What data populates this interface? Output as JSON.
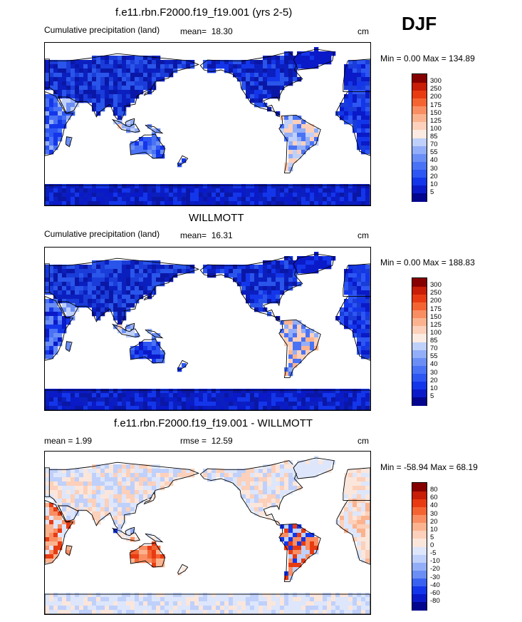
{
  "season": "DJF",
  "panels": [
    {
      "title": "f.e11.rbn.F2000.f19_f19.001 (yrs 2-5)",
      "left_label": "Cumulative precipitation (land)",
      "stat_label": "mean=",
      "stat_value": "18.30",
      "units": "cm",
      "minmax": "Min =   0.00 Max = 134.89",
      "mode": "abs"
    },
    {
      "title": "WILLMOTT",
      "left_label": "Cumulative precipitation (land)",
      "stat_label": "mean=",
      "stat_value": "16.31",
      "units": "cm",
      "minmax": "Min =   0.00 Max = 188.83",
      "mode": "abs2"
    },
    {
      "title": "f.e11.rbn.F2000.f19_f19.001 - WILLMOTT",
      "left_label": "mean =   1.99",
      "stat_label": "rmse =",
      "stat_value": "12.59",
      "units": "cm",
      "minmax": "Min = -58.94 Max =  68.19",
      "mode": "diff"
    }
  ],
  "chart_data": [
    {
      "type": "heatmap",
      "title": "f.e11.rbn.F2000.f19_f19.001 (yrs 2-5)",
      "variable": "Cumulative precipitation (land)",
      "units": "cm",
      "mean": 18.3,
      "min": 0.0,
      "max": 134.89,
      "colorbar_levels": [
        "5",
        "10",
        "20",
        "30",
        "40",
        "55",
        "70",
        "85",
        "100",
        "125",
        "150",
        "175",
        "200",
        "250",
        "300"
      ],
      "colorbar_colors": [
        "#03058e",
        "#0a1ac8",
        "#1436ea",
        "#2d56f2",
        "#4a72f5",
        "#6b8ef5",
        "#93aef8",
        "#bfd0fa",
        "#fbebe2",
        "#fcd0ba",
        "#fbb38f",
        "#f98e63",
        "#f46433",
        "#e83b12",
        "#c81d07",
        "#860000"
      ]
    },
    {
      "type": "heatmap",
      "title": "WILLMOTT",
      "variable": "Cumulative precipitation (land)",
      "units": "cm",
      "mean": 16.31,
      "min": 0.0,
      "max": 188.83,
      "colorbar_levels": [
        "5",
        "10",
        "20",
        "30",
        "40",
        "55",
        "70",
        "85",
        "100",
        "125",
        "150",
        "175",
        "200",
        "250",
        "300"
      ],
      "colorbar_colors": [
        "#03058e",
        "#0a1ac8",
        "#1436ea",
        "#2d56f2",
        "#4a72f5",
        "#6b8ef5",
        "#93aef8",
        "#bfd0fa",
        "#fbebe2",
        "#fcd0ba",
        "#fbb38f",
        "#f98e63",
        "#f46433",
        "#e83b12",
        "#c81d07",
        "#860000"
      ]
    },
    {
      "type": "heatmap",
      "title": "f.e11.rbn.F2000.f19_f19.001 - WILLMOTT",
      "units": "cm",
      "mean": 1.99,
      "rmse": 12.59,
      "min": -58.94,
      "max": 68.19,
      "colorbar_levels": [
        "-80",
        "-60",
        "-40",
        "-30",
        "-20",
        "-10",
        "-5",
        "0",
        "5",
        "10",
        "20",
        "30",
        "40",
        "60",
        "80"
      ],
      "colorbar_colors": [
        "#03058e",
        "#0a1ac8",
        "#1436ea",
        "#3a62f0",
        "#6b8ef5",
        "#93aef8",
        "#bfd0fa",
        "#dde6fb",
        "#fbe6dc",
        "#fcd0ba",
        "#fbb38f",
        "#f98e63",
        "#f46433",
        "#e83b12",
        "#c81d07",
        "#860000"
      ]
    }
  ]
}
